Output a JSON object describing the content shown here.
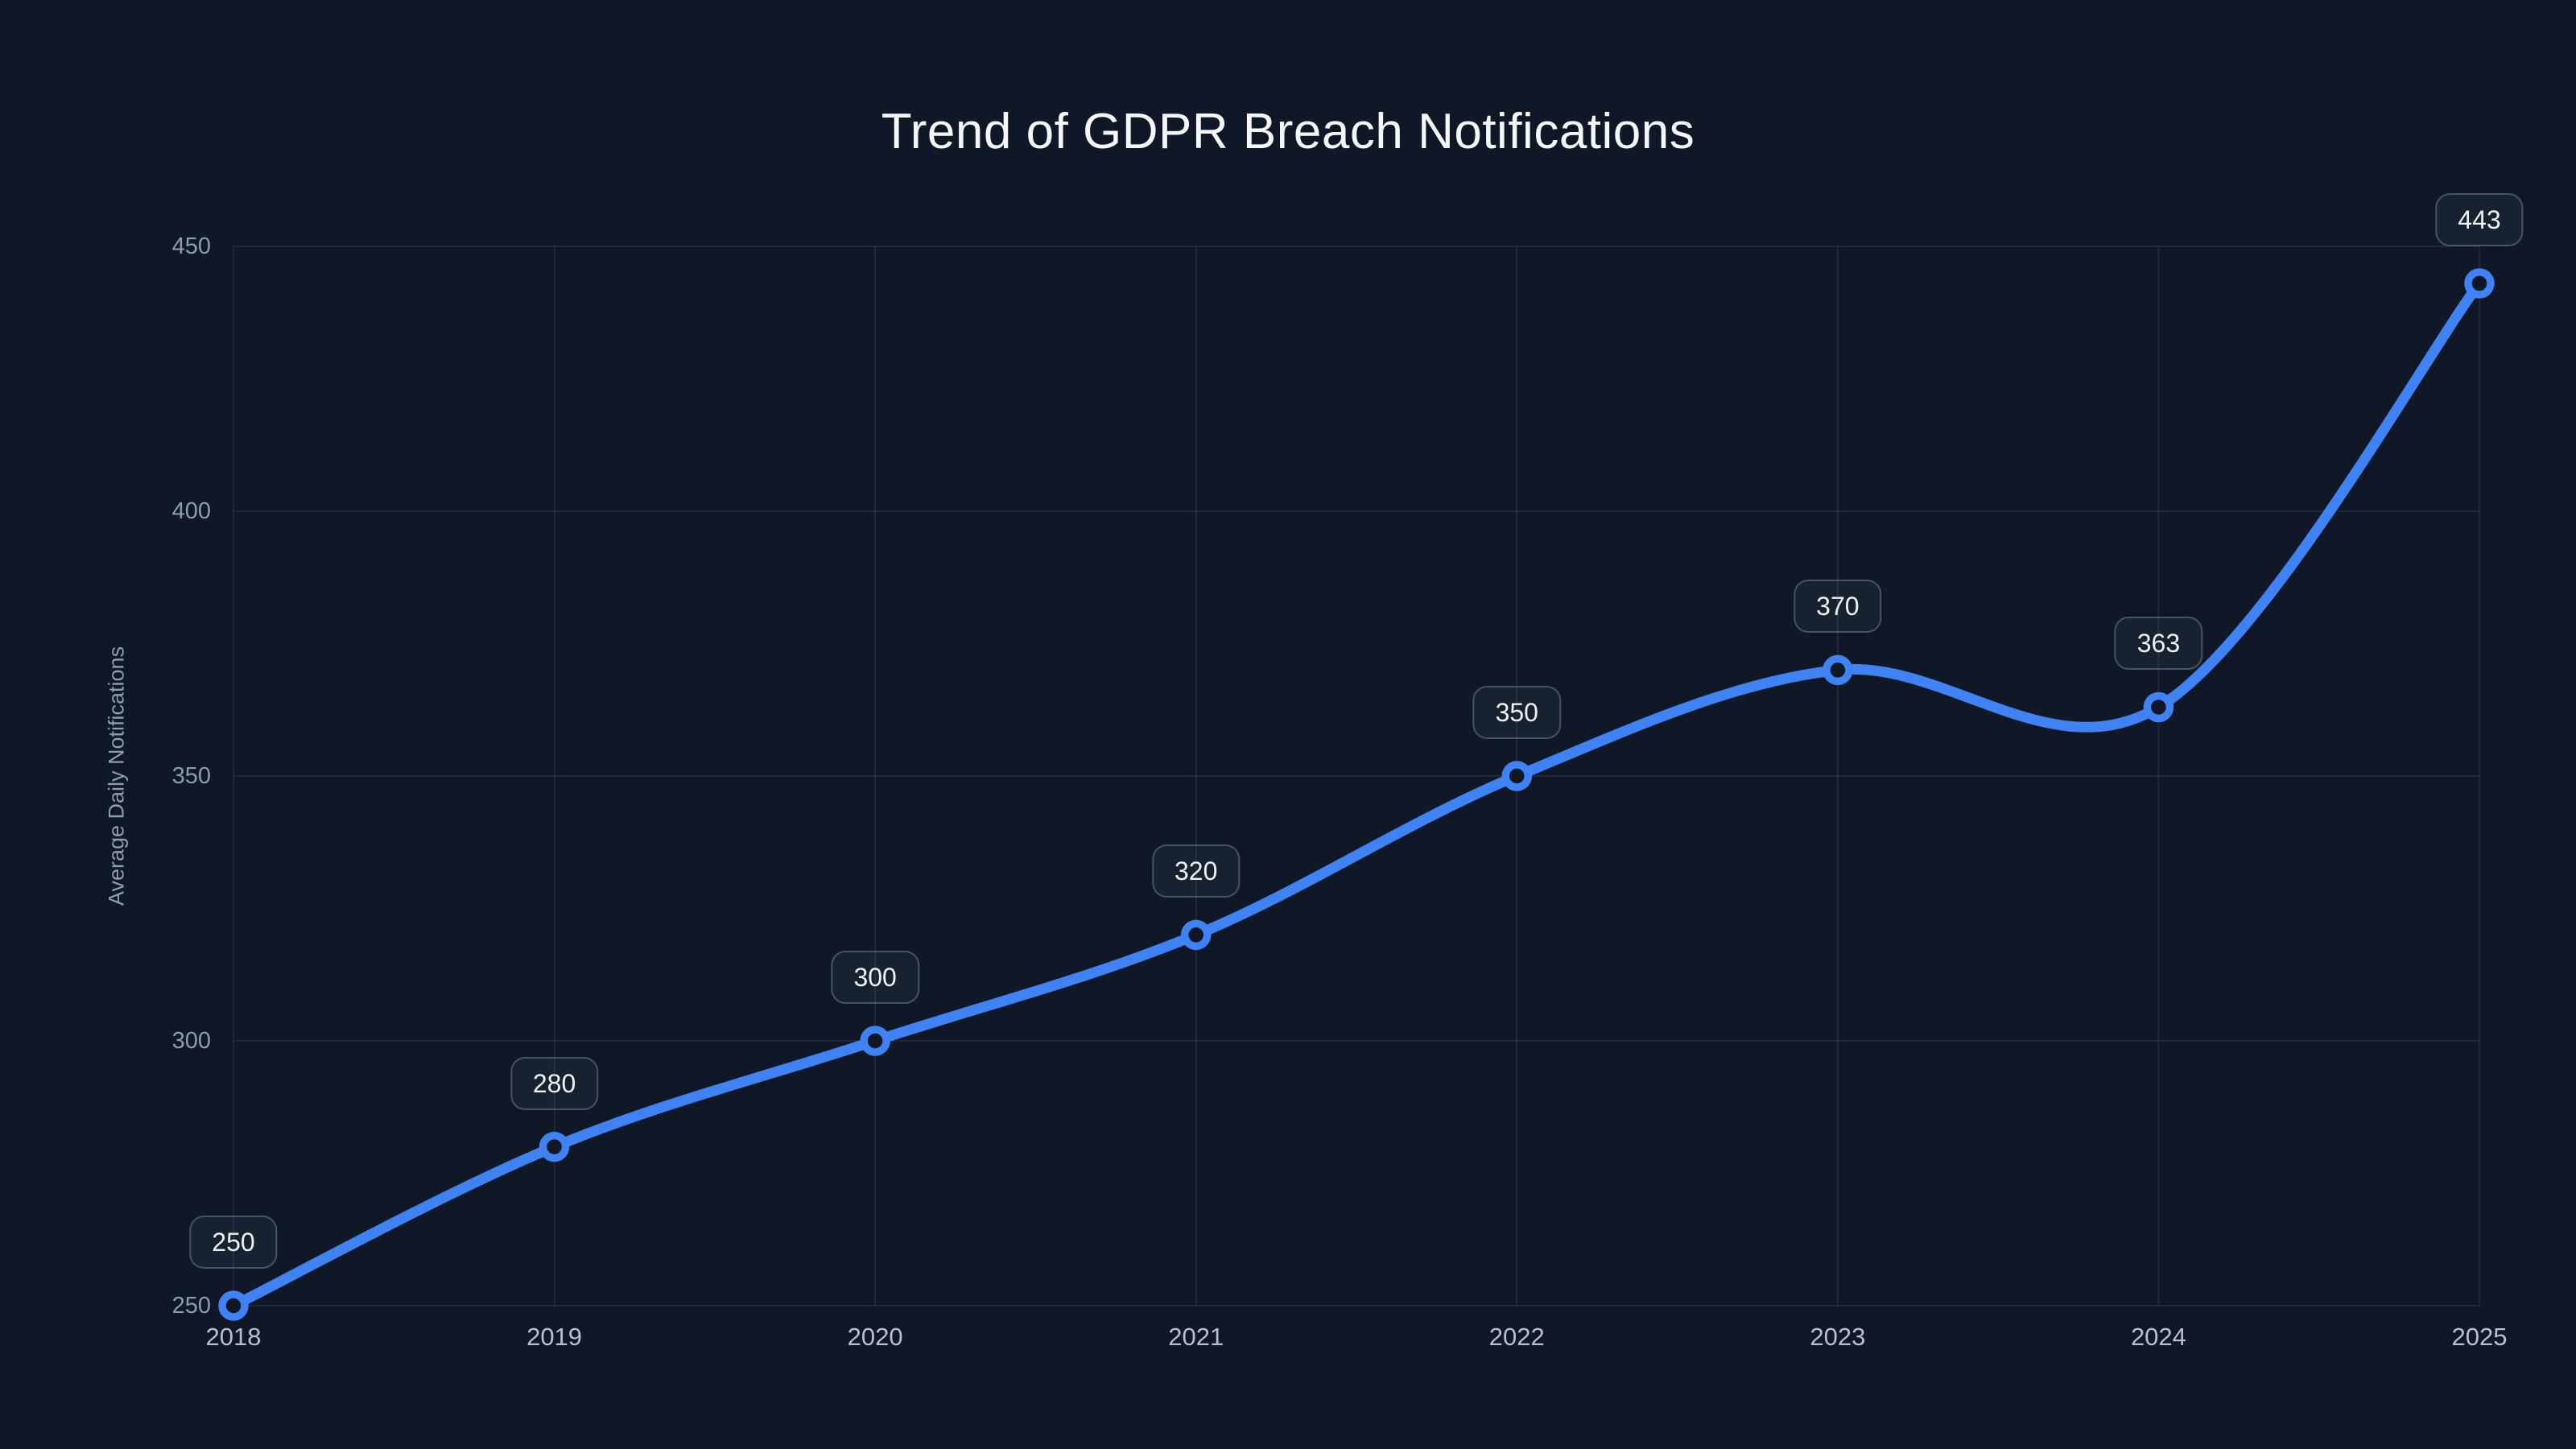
{
  "title": "Trend of GDPR Breach Notifications",
  "colors": {
    "background": "#101726",
    "line": "#3e82f4",
    "marker_ring": "#3e82f4",
    "marker_fill": "#101726",
    "grid": "rgba(148,163,184,0.16)",
    "title_text": "#f5f7fa",
    "y_tick_text": "#8e9cb0",
    "x_tick_text": "#b6c0cf",
    "axis_title_text": "#8e9db2",
    "point_label_text": "#eef2f8",
    "point_label_border": "rgba(148,163,184,0.38)",
    "point_label_bg": "rgba(148,163,184,0.07)"
  },
  "chart_data": {
    "type": "line",
    "title": "Trend of GDPR Breach Notifications",
    "xlabel": "",
    "ylabel": "Average Daily Notifications",
    "categories": [
      "2018",
      "2019",
      "2020",
      "2021",
      "2022",
      "2023",
      "2024",
      "2025"
    ],
    "series": [
      {
        "name": "Average Daily Notifications",
        "values": [
          250,
          280,
          300,
          320,
          350,
          370,
          363,
          443
        ]
      }
    ],
    "point_labels": [
      "250",
      "280",
      "300",
      "320",
      "350",
      "370",
      "363",
      "443"
    ],
    "ylim": [
      250,
      450
    ],
    "yticks": [
      250,
      300,
      350,
      400,
      450
    ],
    "grid": true,
    "smooth": true,
    "markers": true,
    "legend_position": "none"
  }
}
